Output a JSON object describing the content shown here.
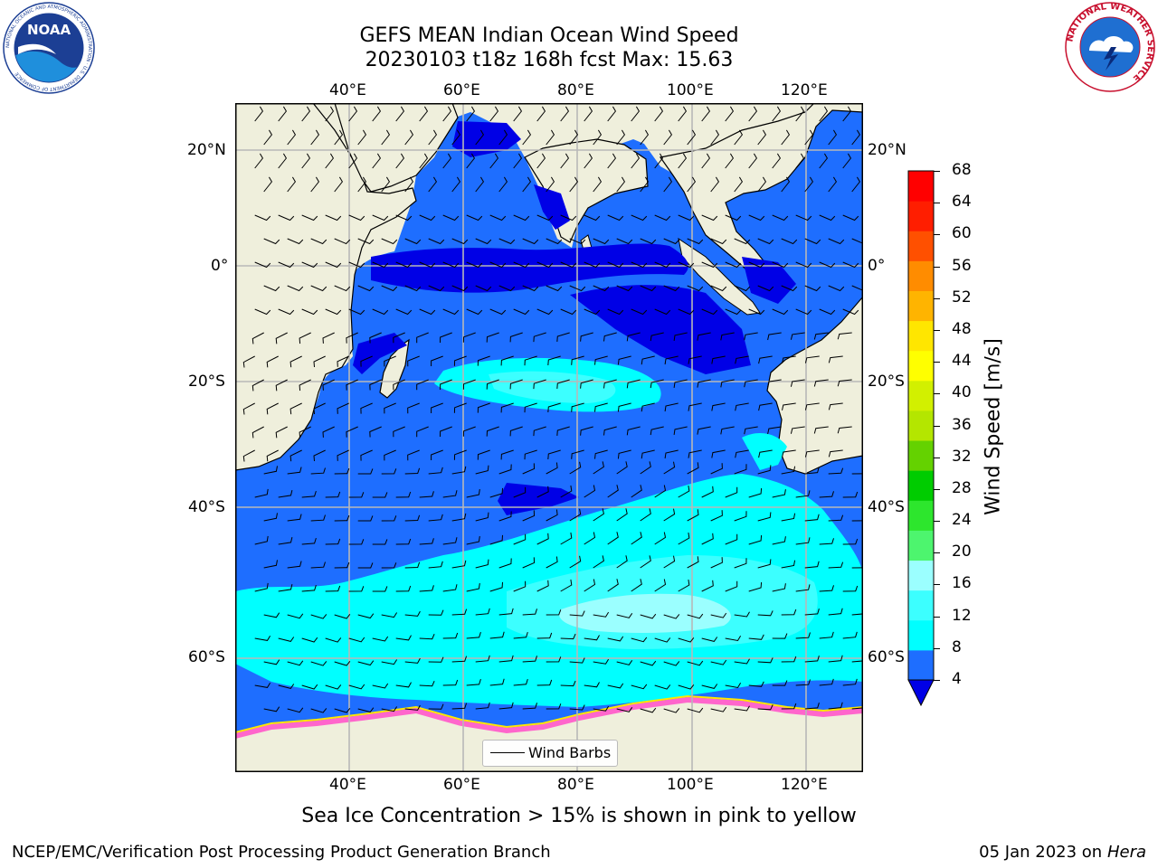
{
  "title": {
    "line1": "GEFS MEAN Indian Ocean Wind Speed",
    "line2": "20230103 t18z 168h fcst   Max: 15.63"
  },
  "map": {
    "lon_labels": [
      "40°E",
      "60°E",
      "80°E",
      "100°E",
      "120°E"
    ],
    "lat_labels_left": [
      "20°N",
      "0°",
      "20°S",
      "40°S",
      "60°S"
    ],
    "lat_labels_right": [
      "20°N",
      "0°",
      "20°S",
      "40°S",
      "60°S"
    ],
    "lon_range": [
      20,
      130
    ],
    "lat_range": [
      -73,
      27
    ],
    "land_color": "#efefdc",
    "ocean_fill_color": "#1e6eff"
  },
  "legend": {
    "label": "Wind Barbs"
  },
  "colorbar": {
    "label": "Wind Speed [m/s]",
    "ticks": [
      "68",
      "64",
      "60",
      "56",
      "52",
      "48",
      "44",
      "40",
      "36",
      "32",
      "28",
      "24",
      "20",
      "16",
      "12",
      "8",
      "4"
    ],
    "colors": [
      "#0000e6",
      "#1e6eff",
      "#00ffff",
      "#3cffff",
      "#9bffff",
      "#4df56e",
      "#2de62d",
      "#00cc00",
      "#64d200",
      "#b4e600",
      "#d2f000",
      "#ffff00",
      "#ffe600",
      "#ffb400",
      "#ff8c00",
      "#ff5000",
      "#ff1e00",
      "#ff0000"
    ]
  },
  "caption": "Sea Ice Concentration > 15% is shown in pink to yellow",
  "footer": {
    "left": "NCEP/EMC/Verification Post Processing Product Generation Branch",
    "right_date": "05 Jan 2023 on ",
    "right_machine": "Hera"
  },
  "logos": {
    "noaa": {
      "text": "NOAA",
      "ring_text": "NATIONAL OCEANIC AND ATMOSPHERIC ADMINISTRATION · U.S. DEPARTMENT OF COMMERCE"
    },
    "nws": {
      "ring_text": "NATIONAL WEATHER SERVICE"
    }
  }
}
